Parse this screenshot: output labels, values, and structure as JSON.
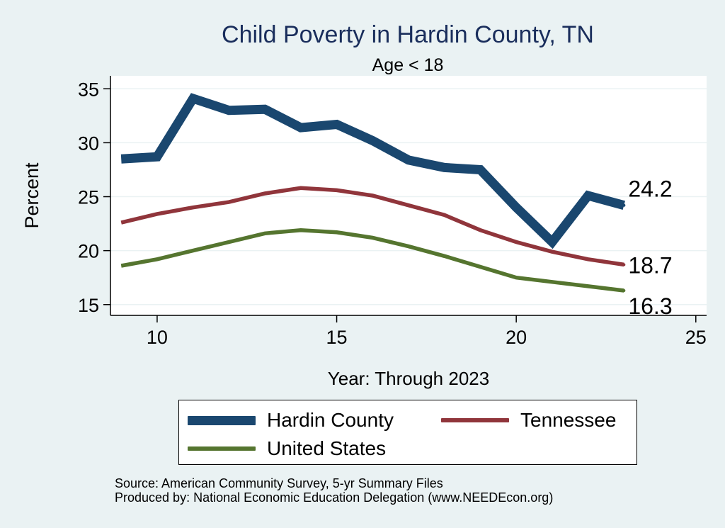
{
  "chart_data": {
    "type": "line",
    "title": "Child Poverty in Hardin County, TN",
    "subtitle": "Age < 18",
    "xlabel": "Year: Through 2023",
    "ylabel": "Percent",
    "xlim": [
      8.7,
      25.3
    ],
    "ylim": [
      14.0,
      36.2
    ],
    "xticks": [
      10,
      15,
      20,
      25
    ],
    "yticks": [
      15,
      20,
      25,
      30,
      35
    ],
    "grid": true,
    "x": [
      9,
      10,
      11,
      12,
      13,
      14,
      15,
      16,
      17,
      18,
      19,
      20,
      21,
      22,
      23
    ],
    "series": [
      {
        "name": "Hardin County",
        "color": "#1a476f",
        "values": [
          28.5,
          28.7,
          34.1,
          33.0,
          33.1,
          31.4,
          31.7,
          30.2,
          28.4,
          27.7,
          27.5,
          24.0,
          20.8,
          25.1,
          24.2
        ],
        "end_label": "24.2"
      },
      {
        "name": "Tennessee",
        "color": "#90353b",
        "values": [
          22.6,
          23.4,
          24.0,
          24.5,
          25.3,
          25.8,
          25.6,
          25.1,
          24.2,
          23.3,
          21.9,
          20.8,
          19.9,
          19.2,
          18.7
        ],
        "end_label": "18.7"
      },
      {
        "name": "United States",
        "color": "#55752f",
        "values": [
          18.6,
          19.2,
          20.0,
          20.8,
          21.6,
          21.9,
          21.7,
          21.2,
          20.4,
          19.5,
          18.5,
          17.5,
          17.1,
          16.7,
          16.3
        ],
        "end_label": "16.3"
      }
    ],
    "legend": [
      "Hardin County",
      "Tennessee",
      "United States"
    ],
    "legend_position": "bottom"
  },
  "source": {
    "line1": "Source: American Community Survey, 5-yr Summary Files",
    "line2": "Produced by: National Economic Education Delegation (www.NEEDEcon.org)"
  }
}
